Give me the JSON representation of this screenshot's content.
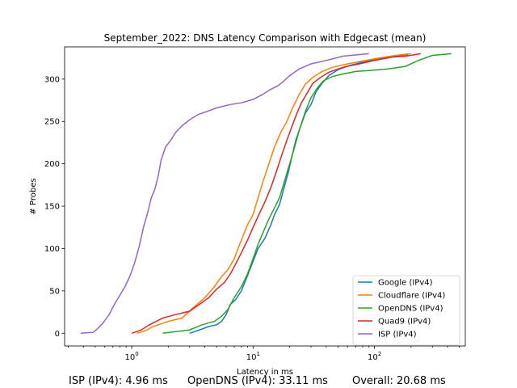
{
  "chart_data": {
    "type": "line",
    "title": "September_2022: DNS Latency Comparison with Edgecast (mean)",
    "xlabel": "Latency in ms",
    "ylabel": "# Probes",
    "xscale": "log",
    "xlim": [
      0.28,
      560
    ],
    "ylim": [
      -15,
      338
    ],
    "xticks": [
      {
        "value": 1,
        "label": "10^0"
      },
      {
        "value": 10,
        "label": "10^1"
      },
      {
        "value": 100,
        "label": "10^2"
      }
    ],
    "yticks": [
      0,
      50,
      100,
      150,
      200,
      250,
      300
    ],
    "legend_position": "lower-right",
    "grid": false,
    "series": [
      {
        "name": "Google (IPv4)",
        "color": "#1f77b4",
        "points": [
          [
            3.0,
            0
          ],
          [
            3.3,
            2
          ],
          [
            3.8,
            5
          ],
          [
            4.3,
            8
          ],
          [
            5.0,
            10
          ],
          [
            5.5,
            14
          ],
          [
            6.0,
            22
          ],
          [
            6.5,
            34
          ],
          [
            7.2,
            40
          ],
          [
            8.0,
            50
          ],
          [
            9.0,
            68
          ],
          [
            10.0,
            85
          ],
          [
            11.0,
            100
          ],
          [
            12.5,
            112
          ],
          [
            14.0,
            128
          ],
          [
            15.0,
            140
          ],
          [
            16.5,
            152
          ],
          [
            18.0,
            172
          ],
          [
            19.5,
            190
          ],
          [
            21.0,
            210
          ],
          [
            22.5,
            228
          ],
          [
            24.0,
            240
          ],
          [
            27.0,
            260
          ],
          [
            30.0,
            270
          ],
          [
            33.0,
            285
          ],
          [
            37.0,
            295
          ],
          [
            42.0,
            304
          ],
          [
            50.0,
            311
          ],
          [
            62.0,
            316
          ],
          [
            80.0,
            320
          ],
          [
            110.0,
            324
          ],
          [
            150.0,
            327
          ],
          [
            190.0,
            329
          ]
        ]
      },
      {
        "name": "Cloudflare (IPv4)",
        "color": "#ff7f0e",
        "points": [
          [
            1.1,
            0
          ],
          [
            1.3,
            3
          ],
          [
            1.5,
            8
          ],
          [
            2.0,
            14
          ],
          [
            2.6,
            18
          ],
          [
            3.2,
            30
          ],
          [
            4.0,
            42
          ],
          [
            4.8,
            55
          ],
          [
            5.5,
            67
          ],
          [
            6.2,
            75
          ],
          [
            7.0,
            88
          ],
          [
            8.0,
            110
          ],
          [
            9.0,
            128
          ],
          [
            10.0,
            140
          ],
          [
            11.0,
            160
          ],
          [
            12.0,
            178
          ],
          [
            13.5,
            200
          ],
          [
            15.0,
            220
          ],
          [
            17.0,
            238
          ],
          [
            19.0,
            250
          ],
          [
            21.0,
            265
          ],
          [
            24.0,
            282
          ],
          [
            27.0,
            294
          ],
          [
            31.0,
            302
          ],
          [
            37.0,
            309
          ],
          [
            45.0,
            314
          ],
          [
            60.0,
            318
          ],
          [
            85.0,
            322
          ],
          [
            110.0,
            325
          ],
          [
            150.0,
            328
          ],
          [
            200.0,
            330
          ]
        ]
      },
      {
        "name": "OpenDNS (IPv4)",
        "color": "#2ca02c",
        "points": [
          [
            1.8,
            0
          ],
          [
            2.3,
            2
          ],
          [
            3.0,
            4
          ],
          [
            3.8,
            10
          ],
          [
            4.8,
            14
          ],
          [
            5.5,
            20
          ],
          [
            6.2,
            28
          ],
          [
            7.0,
            42
          ],
          [
            8.0,
            55
          ],
          [
            9.0,
            70
          ],
          [
            10.0,
            88
          ],
          [
            11.0,
            105
          ],
          [
            12.0,
            118
          ],
          [
            13.5,
            135
          ],
          [
            15.0,
            148
          ],
          [
            16.5,
            160
          ],
          [
            18.0,
            178
          ],
          [
            20.0,
            200
          ],
          [
            22.0,
            220
          ],
          [
            24.0,
            240
          ],
          [
            27.0,
            262
          ],
          [
            30.0,
            278
          ],
          [
            34.0,
            290
          ],
          [
            38.0,
            298
          ],
          [
            45.0,
            303
          ],
          [
            55.0,
            306
          ],
          [
            70.0,
            309
          ],
          [
            90.0,
            310
          ],
          [
            130.0,
            312
          ],
          [
            180.0,
            315
          ],
          [
            230.0,
            322
          ],
          [
            300.0,
            328
          ],
          [
            430.0,
            330
          ]
        ]
      },
      {
        "name": "Quad9 (IPv4)",
        "color": "#d62728",
        "points": [
          [
            1.0,
            0
          ],
          [
            1.2,
            4
          ],
          [
            1.4,
            10
          ],
          [
            1.8,
            18
          ],
          [
            2.3,
            22
          ],
          [
            3.0,
            26
          ],
          [
            3.6,
            34
          ],
          [
            4.3,
            42
          ],
          [
            5.0,
            52
          ],
          [
            5.8,
            60
          ],
          [
            6.5,
            70
          ],
          [
            7.2,
            82
          ],
          [
            8.0,
            95
          ],
          [
            9.0,
            110
          ],
          [
            10.0,
            125
          ],
          [
            11.0,
            138
          ],
          [
            12.5,
            155
          ],
          [
            14.0,
            172
          ],
          [
            15.5,
            190
          ],
          [
            17.0,
            208
          ],
          [
            19.0,
            228
          ],
          [
            21.0,
            245
          ],
          [
            23.0,
            260
          ],
          [
            25.0,
            272
          ],
          [
            28.0,
            284
          ],
          [
            31.0,
            295
          ],
          [
            36.0,
            302
          ],
          [
            42.0,
            308
          ],
          [
            55.0,
            314
          ],
          [
            75.0,
            318
          ],
          [
            100.0,
            322
          ],
          [
            140.0,
            326
          ],
          [
            180.0,
            327
          ],
          [
            240.0,
            330
          ]
        ]
      },
      {
        "name": "ISP (IPv4)",
        "color": "#9467bd",
        "points": [
          [
            0.38,
            0
          ],
          [
            0.48,
            1
          ],
          [
            0.52,
            5
          ],
          [
            0.58,
            12
          ],
          [
            0.65,
            22
          ],
          [
            0.72,
            34
          ],
          [
            0.8,
            45
          ],
          [
            0.88,
            55
          ],
          [
            0.97,
            68
          ],
          [
            1.05,
            82
          ],
          [
            1.15,
            102
          ],
          [
            1.25,
            125
          ],
          [
            1.35,
            142
          ],
          [
            1.45,
            160
          ],
          [
            1.55,
            170
          ],
          [
            1.65,
            185
          ],
          [
            1.75,
            205
          ],
          [
            1.9,
            220
          ],
          [
            2.1,
            228
          ],
          [
            2.3,
            237
          ],
          [
            2.6,
            245
          ],
          [
            3.0,
            252
          ],
          [
            3.5,
            258
          ],
          [
            4.2,
            262
          ],
          [
            5.0,
            266
          ],
          [
            6.5,
            270
          ],
          [
            8.0,
            272
          ],
          [
            10.0,
            276
          ],
          [
            12.0,
            282
          ],
          [
            14.0,
            288
          ],
          [
            16.0,
            292
          ],
          [
            18.0,
            298
          ],
          [
            20.0,
            304
          ],
          [
            24.0,
            312
          ],
          [
            30.0,
            318
          ],
          [
            40.0,
            322
          ],
          [
            55.0,
            327
          ],
          [
            90.0,
            330
          ]
        ]
      }
    ]
  },
  "footer": {
    "isp": "ISP (IPv4): 4.96 ms",
    "opendns": "OpenDNS (IPv4): 33.11 ms",
    "overall": "Overall: 20.68 ms"
  }
}
